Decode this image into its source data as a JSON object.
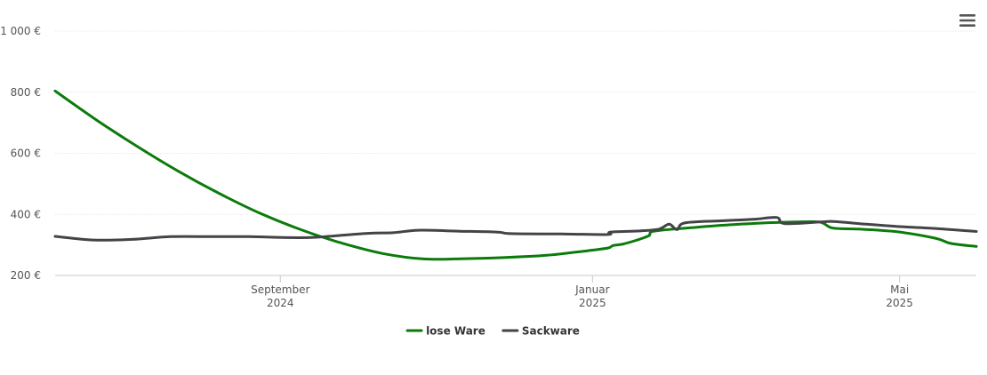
{
  "menu": {
    "icon": "hamburger-menu-icon"
  },
  "chart_data": {
    "type": "line",
    "y_axis": {
      "min": 200,
      "max": 1000,
      "ticks": [
        {
          "value": 200,
          "label": "200 €"
        },
        {
          "value": 400,
          "label": "400 €"
        },
        {
          "value": 600,
          "label": "600 €"
        },
        {
          "value": 800,
          "label": "800 €"
        },
        {
          "value": 1000,
          "label": "1 000 €"
        }
      ],
      "grid": true
    },
    "x_axis": {
      "type": "date",
      "range": [
        "2024-06-05",
        "2025-05-31"
      ],
      "ticks": [
        {
          "date": "2024-09-01",
          "line1": "September",
          "line2": "2024"
        },
        {
          "date": "2025-01-01",
          "line1": "Januar",
          "line2": "2025"
        },
        {
          "date": "2025-05-01",
          "line1": "Mai",
          "line2": "2025"
        }
      ]
    },
    "legend_position": "bottom-center",
    "series": [
      {
        "name": "lose Ware",
        "color": "#0b7b0b",
        "points": [
          [
            "2024-06-05",
            804
          ],
          [
            "2024-06-21",
            710
          ],
          [
            "2024-07-07",
            623
          ],
          [
            "2024-07-23",
            542
          ],
          [
            "2024-08-08",
            469
          ],
          [
            "2024-08-24",
            404
          ],
          [
            "2024-09-09",
            350
          ],
          [
            "2024-09-25",
            306
          ],
          [
            "2024-10-11",
            272
          ],
          [
            "2024-10-27",
            254
          ],
          [
            "2024-11-12",
            255
          ],
          [
            "2024-11-28",
            259
          ],
          [
            "2024-12-14",
            266
          ],
          [
            "2024-12-30",
            281
          ],
          [
            "2025-01-07",
            290
          ],
          [
            "2025-01-09",
            298
          ],
          [
            "2025-01-13",
            303
          ],
          [
            "2025-01-18",
            315
          ],
          [
            "2025-01-23",
            330
          ],
          [
            "2025-01-25",
            345
          ],
          [
            "2025-02-08",
            356
          ],
          [
            "2025-02-24",
            366
          ],
          [
            "2025-03-12",
            373
          ],
          [
            "2025-03-28",
            376
          ],
          [
            "2025-04-01",
            372
          ],
          [
            "2025-04-05",
            355
          ],
          [
            "2025-04-15",
            352
          ],
          [
            "2025-04-30",
            343
          ],
          [
            "2025-05-15",
            322
          ],
          [
            "2025-05-21",
            305
          ],
          [
            "2025-05-31",
            295
          ]
        ]
      },
      {
        "name": "Sackware",
        "color": "#434348",
        "points": [
          [
            "2024-06-05",
            328
          ],
          [
            "2024-06-20",
            316
          ],
          [
            "2024-07-05",
            318
          ],
          [
            "2024-07-20",
            327
          ],
          [
            "2024-08-05",
            327
          ],
          [
            "2024-08-20",
            327
          ],
          [
            "2024-09-05",
            324
          ],
          [
            "2024-09-15",
            325
          ],
          [
            "2024-10-05",
            338
          ],
          [
            "2024-10-15",
            340
          ],
          [
            "2024-10-25",
            348
          ],
          [
            "2024-11-10",
            345
          ],
          [
            "2024-11-25",
            342
          ],
          [
            "2024-11-30",
            337
          ],
          [
            "2024-12-20",
            336
          ],
          [
            "2025-01-07",
            334
          ],
          [
            "2025-01-08",
            342
          ],
          [
            "2025-01-20",
            346
          ],
          [
            "2025-01-27",
            352
          ],
          [
            "2025-01-31",
            368
          ],
          [
            "2025-02-03",
            350
          ],
          [
            "2025-02-06",
            372
          ],
          [
            "2025-02-20",
            379
          ],
          [
            "2025-03-05",
            384
          ],
          [
            "2025-03-14",
            390
          ],
          [
            "2025-03-17",
            370
          ],
          [
            "2025-03-31",
            375
          ],
          [
            "2025-04-05",
            377
          ],
          [
            "2025-04-15",
            370
          ],
          [
            "2025-05-01",
            360
          ],
          [
            "2025-05-15",
            354
          ],
          [
            "2025-05-31",
            344
          ]
        ]
      }
    ]
  }
}
